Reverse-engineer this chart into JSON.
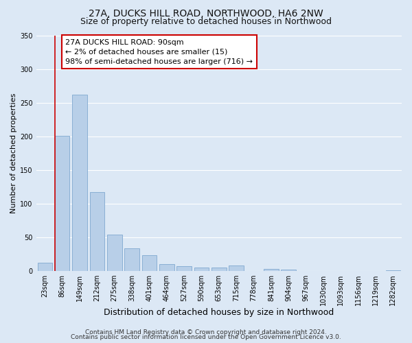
{
  "title": "27A, DUCKS HILL ROAD, NORTHWOOD, HA6 2NW",
  "subtitle": "Size of property relative to detached houses in Northwood",
  "xlabel": "Distribution of detached houses by size in Northwood",
  "ylabel": "Number of detached properties",
  "bar_labels": [
    "23sqm",
    "86sqm",
    "149sqm",
    "212sqm",
    "275sqm",
    "338sqm",
    "401sqm",
    "464sqm",
    "527sqm",
    "590sqm",
    "653sqm",
    "715sqm",
    "778sqm",
    "841sqm",
    "904sqm",
    "967sqm",
    "1030sqm",
    "1093sqm",
    "1156sqm",
    "1219sqm",
    "1282sqm"
  ],
  "bar_values": [
    12,
    201,
    262,
    117,
    54,
    34,
    23,
    10,
    7,
    5,
    5,
    8,
    0,
    3,
    2,
    0,
    0,
    0,
    0,
    0,
    1
  ],
  "bar_color": "#b8cfe8",
  "bar_edge_color": "#8aafd4",
  "vline_color": "#cc0000",
  "ylim": [
    0,
    350
  ],
  "yticks": [
    0,
    50,
    100,
    150,
    200,
    250,
    300,
    350
  ],
  "annotation_text": "27A DUCKS HILL ROAD: 90sqm\n← 2% of detached houses are smaller (15)\n98% of semi-detached houses are larger (716) →",
  "annotation_box_color": "#ffffff",
  "annotation_box_edgecolor": "#cc0000",
  "footer_line1": "Contains HM Land Registry data © Crown copyright and database right 2024.",
  "footer_line2": "Contains public sector information licensed under the Open Government Licence v3.0.",
  "bg_color": "#dce8f5",
  "plot_bg_color": "#dce8f5",
  "grid_color": "#ffffff",
  "title_fontsize": 10,
  "subtitle_fontsize": 9,
  "xlabel_fontsize": 9,
  "ylabel_fontsize": 8,
  "tick_fontsize": 7,
  "annotation_fontsize": 8,
  "footer_fontsize": 6.5
}
